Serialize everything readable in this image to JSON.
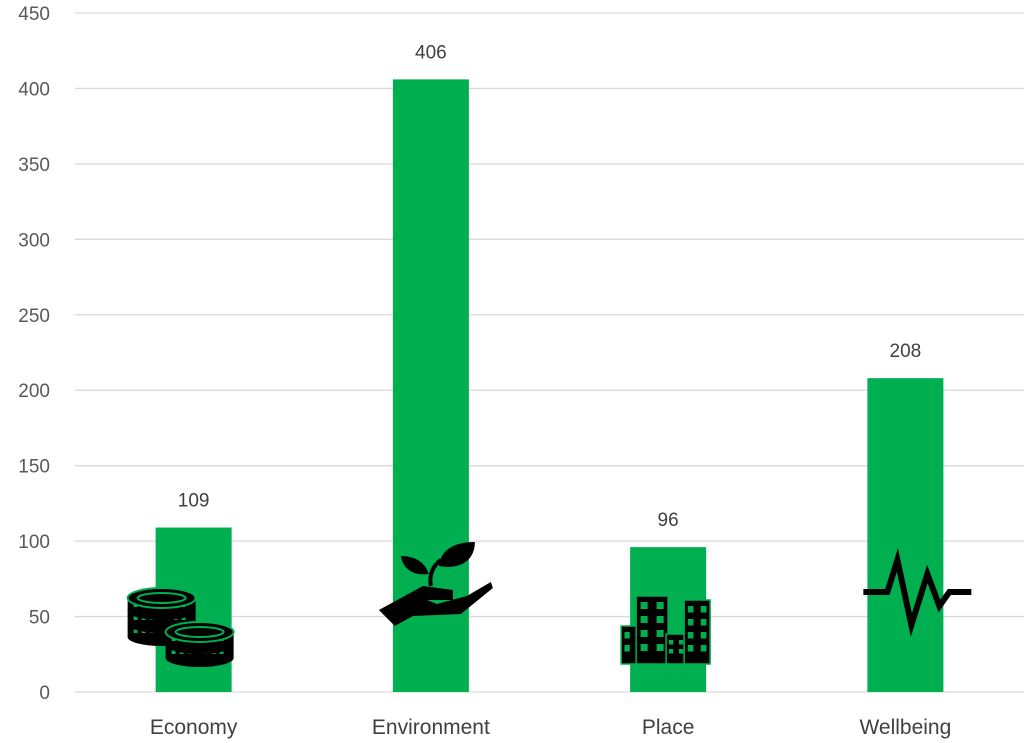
{
  "chart_data": {
    "type": "bar",
    "categories": [
      "Economy",
      "Environment",
      "Place",
      "Wellbeing"
    ],
    "values": [
      109,
      406,
      96,
      208
    ],
    "data_labels": [
      "109",
      "406",
      "96",
      "208"
    ],
    "icons": [
      "coins-icon",
      "plant-in-hand-icon",
      "buildings-icon",
      "heartbeat-icon"
    ],
    "ylim": [
      0,
      450
    ],
    "yticks": [
      0,
      50,
      100,
      150,
      200,
      250,
      300,
      350,
      400,
      450
    ],
    "grid": true,
    "legend": "none",
    "title": "",
    "xlabel": "",
    "ylabel": "",
    "colors": {
      "bar": "#00b050",
      "icon": "#000000",
      "grid": "#d9d9d9"
    }
  }
}
